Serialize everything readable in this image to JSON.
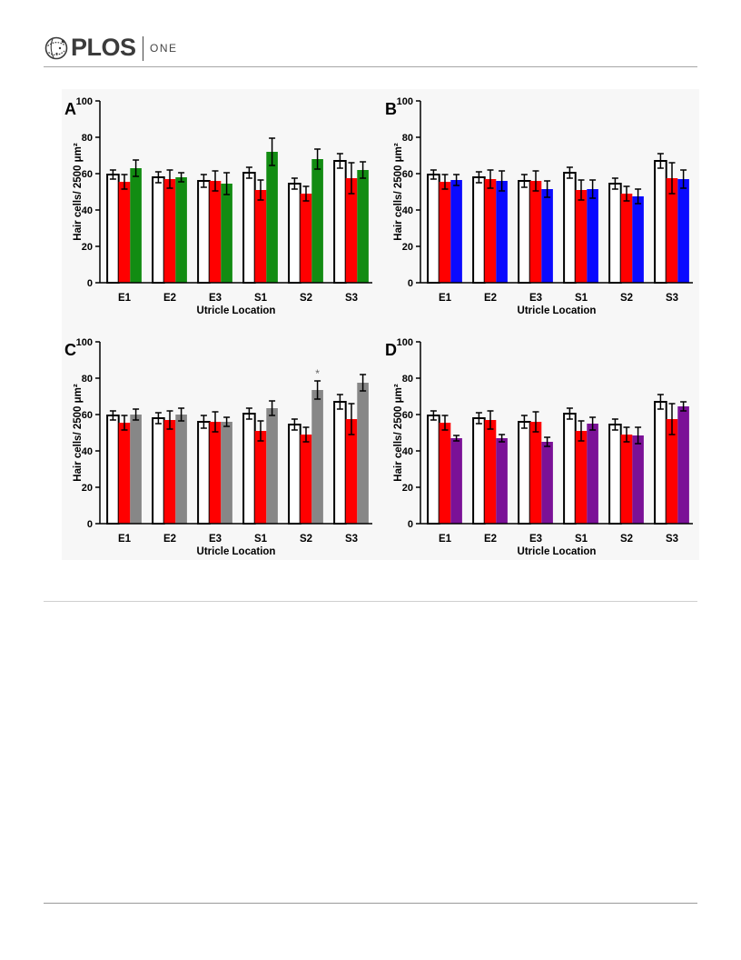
{
  "header": {
    "logo_primary": "PLOS",
    "logo_secondary": "ONE"
  },
  "chart_data": [
    {
      "panel": "A",
      "type": "bar",
      "ylabel": "Hair cells/ 2500 μm²",
      "xlabel": "Utricle Location",
      "ylim": [
        0,
        100
      ],
      "yticks": [
        0,
        20,
        40,
        60,
        80,
        100
      ],
      "grid": false,
      "categories": [
        "E1",
        "E2",
        "E3",
        "S1",
        "S2",
        "S3"
      ],
      "series": [
        {
          "color": "#ffffff",
          "stroke": "#000000",
          "values": [
            59.5,
            58,
            56,
            60.5,
            54.5,
            67
          ],
          "errors": [
            2.5,
            3,
            3.5,
            3,
            3,
            4
          ]
        },
        {
          "color": "#ff0000",
          "values": [
            55.5,
            57,
            56,
            51,
            49,
            57.5
          ],
          "errors": [
            4,
            5,
            5.5,
            5.5,
            4,
            8.5
          ]
        },
        {
          "color": "#128c12",
          "values": [
            63,
            58,
            54.5,
            72,
            68,
            62
          ],
          "errors": [
            4.5,
            2.5,
            6,
            7.5,
            5.5,
            4.5
          ]
        }
      ],
      "annotations": []
    },
    {
      "panel": "B",
      "type": "bar",
      "ylabel": "Hair cells/ 2500 μm²",
      "xlabel": "Utricle Location",
      "ylim": [
        0,
        100
      ],
      "yticks": [
        0,
        20,
        40,
        60,
        80,
        100
      ],
      "grid": false,
      "categories": [
        "E1",
        "E2",
        "E3",
        "S1",
        "S2",
        "S3"
      ],
      "series": [
        {
          "color": "#ffffff",
          "stroke": "#000000",
          "values": [
            59.5,
            58,
            56,
            60.5,
            54.5,
            67
          ],
          "errors": [
            2.5,
            3,
            3.5,
            3,
            3,
            4
          ]
        },
        {
          "color": "#ff0000",
          "values": [
            55.5,
            57,
            56,
            51,
            49,
            57.5
          ],
          "errors": [
            4,
            5,
            5.5,
            5.5,
            4,
            8.5
          ]
        },
        {
          "color": "#0a0aff",
          "values": [
            56.5,
            56,
            51.5,
            51.5,
            47.5,
            57
          ],
          "errors": [
            3,
            5.5,
            4.5,
            5,
            4,
            5
          ]
        }
      ],
      "annotations": []
    },
    {
      "panel": "C",
      "type": "bar",
      "ylabel": "Hair cells/ 2500 μm²",
      "xlabel": "Utricle Location",
      "ylim": [
        0,
        100
      ],
      "yticks": [
        0,
        20,
        40,
        60,
        80,
        100
      ],
      "grid": false,
      "categories": [
        "E1",
        "E2",
        "E3",
        "S1",
        "S2",
        "S3"
      ],
      "series": [
        {
          "color": "#ffffff",
          "stroke": "#000000",
          "values": [
            59.5,
            58,
            56,
            60.5,
            54.5,
            67
          ],
          "errors": [
            2.5,
            3,
            3.5,
            3,
            3,
            4
          ]
        },
        {
          "color": "#ff0000",
          "values": [
            55.5,
            57,
            56,
            51,
            49,
            57.5
          ],
          "errors": [
            4,
            5,
            5.5,
            5.5,
            4,
            8.5
          ]
        },
        {
          "color": "#878787",
          "values": [
            60,
            60,
            56,
            63.5,
            73.5,
            77.5
          ],
          "errors": [
            3,
            3.5,
            2.5,
            4,
            5,
            4.5
          ]
        }
      ],
      "annotations": [
        {
          "text": "*",
          "category": "S2",
          "series": 2
        }
      ]
    },
    {
      "panel": "D",
      "type": "bar",
      "ylabel": "Hair cells/ 2500 μm²",
      "xlabel": "Utricle Location",
      "ylim": [
        0,
        100
      ],
      "yticks": [
        0,
        20,
        40,
        60,
        80,
        100
      ],
      "grid": false,
      "categories": [
        "E1",
        "E2",
        "E3",
        "S1",
        "S2",
        "S3"
      ],
      "series": [
        {
          "color": "#ffffff",
          "stroke": "#000000",
          "values": [
            59.5,
            58,
            56,
            60.5,
            54.5,
            67
          ],
          "errors": [
            2.5,
            3,
            3.5,
            3,
            3,
            4
          ]
        },
        {
          "color": "#ff0000",
          "values": [
            55.5,
            57,
            56,
            51,
            49,
            57.5
          ],
          "errors": [
            4,
            5,
            5.5,
            5.5,
            4,
            8.5
          ]
        },
        {
          "color": "#7b1197",
          "values": [
            47,
            47,
            45,
            55,
            48.5,
            64.5
          ],
          "errors": [
            1.5,
            2,
            2.5,
            3.5,
            4.5,
            2.5
          ]
        }
      ],
      "annotations": []
    }
  ]
}
